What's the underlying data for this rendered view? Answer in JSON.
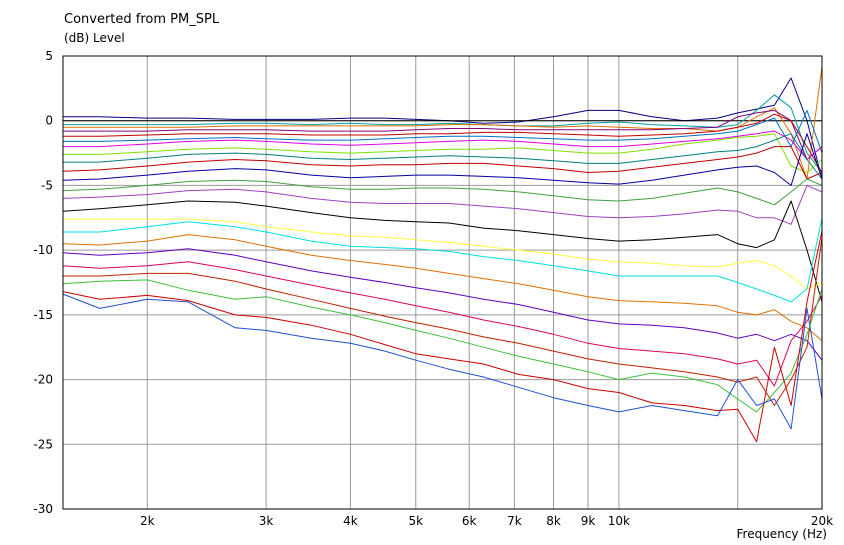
{
  "chart_data": {
    "type": "line",
    "title": "Converted from PM_SPL",
    "ylabel": "(dB)  Level",
    "xlabel": "Frequency  (Hz)",
    "x_scale": "log",
    "xlim": [
      1500,
      20000
    ],
    "ylim": [
      -30,
      5
    ],
    "grid": true,
    "y_ticks": [
      5,
      0,
      -5,
      -10,
      -15,
      -20,
      -25,
      -30
    ],
    "x_ticks": [
      {
        "value": 2000,
        "label": "2k"
      },
      {
        "value": 3000,
        "label": "3k"
      },
      {
        "value": 4000,
        "label": "4k"
      },
      {
        "value": 5000,
        "label": "5k"
      },
      {
        "value": 6000,
        "label": "6k"
      },
      {
        "value": 7000,
        "label": "7k"
      },
      {
        "value": 8000,
        "label": "8k"
      },
      {
        "value": 9000,
        "label": "9k"
      },
      {
        "value": 10000,
        "label": "10k"
      },
      {
        "value": 20000,
        "label": "20k"
      }
    ],
    "x_minor_ticks": [
      15000
    ],
    "x": [
      1500,
      1700,
      2000,
      2300,
      2700,
      3000,
      3500,
      4000,
      4500,
      5000,
      5600,
      6300,
      7100,
      8000,
      9000,
      10000,
      11200,
      12500,
      14000,
      15000,
      16000,
      17000,
      18000,
      19000,
      20000
    ],
    "series": [
      {
        "color": "#000080",
        "values": [
          0.3,
          0.3,
          0.2,
          0.2,
          0.1,
          0.1,
          0.1,
          0.2,
          0.2,
          0.1,
          0.0,
          -0.2,
          -0.1,
          0.3,
          0.8,
          0.8,
          0.3,
          0.0,
          0.2,
          0.6,
          0.9,
          1.2,
          3.3,
          0.0,
          -4.5
        ]
      },
      {
        "color": "#000000",
        "values": [
          0.0,
          0.0,
          0.0,
          0.0,
          0.0,
          0.0,
          0.0,
          0.0,
          0.0,
          0.0,
          0.0,
          0.0,
          0.0,
          0.0,
          0.0,
          0.0,
          0.0,
          0.0,
          0.0,
          0.0,
          0.0,
          0.0,
          0.0,
          0.0,
          0.0
        ]
      },
      {
        "color": "#00a0a0",
        "values": [
          -0.3,
          -0.3,
          -0.3,
          -0.3,
          -0.2,
          -0.2,
          -0.3,
          -0.2,
          -0.3,
          -0.3,
          -0.2,
          -0.3,
          -0.4,
          -0.4,
          -0.2,
          -0.1,
          -0.3,
          -0.4,
          -0.5,
          -0.3,
          0.8,
          2.0,
          1.0,
          -2.5,
          -4.0
        ]
      },
      {
        "color": "#e07000",
        "values": [
          -0.5,
          -0.5,
          -0.5,
          -0.5,
          -0.4,
          -0.4,
          -0.4,
          -0.4,
          -0.4,
          -0.4,
          -0.3,
          -0.3,
          -0.4,
          -0.5,
          -0.4,
          -0.5,
          -0.6,
          -0.6,
          -0.8,
          -0.5,
          0.3,
          1.0,
          -1.0,
          -4.5,
          4.2
        ]
      },
      {
        "color": "#800080",
        "values": [
          -0.8,
          -0.8,
          -0.8,
          -0.7,
          -0.7,
          -0.7,
          -0.8,
          -0.8,
          -0.8,
          -0.7,
          -0.6,
          -0.6,
          -0.7,
          -0.7,
          -0.7,
          -0.7,
          -0.7,
          -0.6,
          -0.5,
          0.3,
          0.6,
          0.8,
          0.0,
          -3.0,
          -2.0
        ]
      },
      {
        "color": "#c00000",
        "values": [
          -1.2,
          -1.2,
          -1.1,
          -1.0,
          -1.0,
          -1.0,
          -1.1,
          -1.1,
          -1.1,
          -1.0,
          -1.0,
          -0.9,
          -0.9,
          -1.0,
          -1.1,
          -1.2,
          -1.1,
          -1.0,
          -0.8,
          -0.5,
          -0.2,
          0.5,
          0.0,
          -2.0,
          -4.0
        ]
      },
      {
        "color": "#0070c0",
        "values": [
          -1.6,
          -1.6,
          -1.5,
          -1.4,
          -1.3,
          -1.4,
          -1.5,
          -1.5,
          -1.4,
          -1.3,
          -1.2,
          -1.2,
          -1.3,
          -1.4,
          -1.5,
          -1.5,
          -1.4,
          -1.2,
          -1.0,
          -0.8,
          -0.3,
          0.2,
          -2.0,
          0.8,
          -2.5
        ]
      },
      {
        "color": "#e000e0",
        "values": [
          -2.0,
          -2.0,
          -1.8,
          -1.6,
          -1.5,
          -1.6,
          -1.8,
          -1.9,
          -1.8,
          -1.7,
          -1.6,
          -1.5,
          -1.6,
          -1.8,
          -2.0,
          -2.0,
          -1.8,
          -1.6,
          -1.4,
          -1.2,
          -1.0,
          -0.8,
          -1.5,
          -3.0,
          -2.0
        ]
      },
      {
        "color": "#80e000",
        "values": [
          -2.6,
          -2.6,
          -2.4,
          -2.2,
          -2.1,
          -2.2,
          -2.4,
          -2.5,
          -2.4,
          -2.3,
          -2.2,
          -2.2,
          -2.1,
          -2.3,
          -2.5,
          -2.5,
          -2.2,
          -1.8,
          -1.5,
          -1.3,
          -1.2,
          -1.0,
          -3.5,
          -4.0,
          -3.0
        ]
      },
      {
        "color": "#008080",
        "values": [
          -3.2,
          -3.2,
          -2.9,
          -2.6,
          -2.5,
          -2.6,
          -2.9,
          -3.0,
          -2.9,
          -2.8,
          -2.7,
          -2.8,
          -2.9,
          -3.1,
          -3.3,
          -3.3,
          -3.0,
          -2.7,
          -2.4,
          -2.3,
          -2.0,
          -1.5,
          -1.0,
          -3.0,
          -4.5
        ]
      },
      {
        "color": "#c00000",
        "values": [
          -3.9,
          -3.8,
          -3.5,
          -3.2,
          -3.0,
          -3.1,
          -3.4,
          -3.5,
          -3.4,
          -3.4,
          -3.3,
          -3.3,
          -3.5,
          -3.7,
          -4.0,
          -3.9,
          -3.6,
          -3.3,
          -3.0,
          -2.8,
          -2.5,
          -2.0,
          -2.0,
          -4.5,
          -4.0
        ]
      },
      {
        "color": "#0000a0",
        "values": [
          -4.6,
          -4.5,
          -4.2,
          -3.9,
          -3.7,
          -3.8,
          -4.2,
          -4.4,
          -4.3,
          -4.2,
          -4.2,
          -4.3,
          -4.4,
          -4.6,
          -4.8,
          -4.9,
          -4.6,
          -4.2,
          -3.8,
          -3.6,
          -3.5,
          -4.0,
          -5.0,
          -1.0,
          -4.5
        ]
      },
      {
        "color": "#40a040",
        "values": [
          -5.4,
          -5.3,
          -5.0,
          -4.7,
          -4.6,
          -4.7,
          -5.1,
          -5.3,
          -5.3,
          -5.2,
          -5.2,
          -5.3,
          -5.5,
          -5.8,
          -6.1,
          -6.2,
          -6.0,
          -5.6,
          -5.2,
          -5.5,
          -6.0,
          -6.5,
          -5.5,
          -4.5,
          -5.0
        ]
      },
      {
        "color": "#a040c0",
        "values": [
          -6.0,
          -5.9,
          -5.7,
          -5.4,
          -5.3,
          -5.5,
          -6.0,
          -6.3,
          -6.4,
          -6.4,
          -6.4,
          -6.6,
          -6.8,
          -7.1,
          -7.4,
          -7.5,
          -7.4,
          -7.2,
          -6.9,
          -7.0,
          -7.5,
          -7.5,
          -8.0,
          -5.0,
          -5.5
        ]
      },
      {
        "color": "#000000",
        "values": [
          -7.0,
          -6.8,
          -6.5,
          -6.2,
          -6.3,
          -6.6,
          -7.1,
          -7.5,
          -7.7,
          -7.8,
          -7.9,
          -8.3,
          -8.5,
          -8.8,
          -9.1,
          -9.3,
          -9.2,
          -9.0,
          -8.8,
          -9.5,
          -9.8,
          -9.2,
          -6.2,
          -10.0,
          -14.0
        ]
      },
      {
        "color": "#ffff40",
        "values": [
          -7.6,
          -7.6,
          -7.6,
          -7.6,
          -7.8,
          -8.2,
          -8.6,
          -8.9,
          -9.0,
          -9.2,
          -9.4,
          -9.7,
          -10.0,
          -10.3,
          -10.7,
          -10.9,
          -11.0,
          -11.2,
          -11.3,
          -11.0,
          -10.8,
          -11.2,
          -12.0,
          -13.0,
          -12.5
        ]
      },
      {
        "color": "#00e0e0",
        "values": [
          -8.6,
          -8.6,
          -8.2,
          -7.8,
          -8.2,
          -8.6,
          -9.3,
          -9.7,
          -9.8,
          -9.9,
          -10.1,
          -10.5,
          -10.8,
          -11.2,
          -11.6,
          -12.0,
          -12.0,
          -12.0,
          -12.0,
          -12.5,
          -13.0,
          -13.5,
          -14.0,
          -13.0,
          -7.5
        ]
      },
      {
        "color": "#e07000",
        "values": [
          -9.5,
          -9.6,
          -9.3,
          -8.8,
          -9.2,
          -9.7,
          -10.4,
          -10.8,
          -11.1,
          -11.4,
          -11.8,
          -12.2,
          -12.6,
          -13.1,
          -13.6,
          -13.9,
          -14.0,
          -14.1,
          -14.3,
          -14.8,
          -15.0,
          -14.6,
          -15.5,
          -16.0,
          -17.0
        ]
      },
      {
        "color": "#6000c0",
        "values": [
          -10.2,
          -10.4,
          -10.2,
          -9.9,
          -10.4,
          -10.9,
          -11.6,
          -12.1,
          -12.5,
          -12.9,
          -13.3,
          -13.8,
          -14.2,
          -14.8,
          -15.4,
          -15.7,
          -15.8,
          -16.0,
          -16.4,
          -16.8,
          -16.5,
          -17.0,
          -16.5,
          -17.0,
          -18.5
        ]
      },
      {
        "color": "#e00060",
        "values": [
          -11.2,
          -11.4,
          -11.2,
          -10.9,
          -11.5,
          -12.0,
          -12.7,
          -13.3,
          -13.8,
          -14.3,
          -14.8,
          -15.4,
          -15.9,
          -16.5,
          -17.2,
          -17.6,
          -17.8,
          -18.0,
          -18.4,
          -18.8,
          -18.5,
          -20.5,
          -17.0,
          -15.5,
          -13.5
        ]
      },
      {
        "color": "#c02000",
        "values": [
          -12.0,
          -12.0,
          -11.8,
          -11.8,
          -12.4,
          -13.0,
          -13.8,
          -14.5,
          -15.1,
          -15.6,
          -16.1,
          -16.7,
          -17.2,
          -17.8,
          -18.4,
          -18.8,
          -19.1,
          -19.4,
          -19.8,
          -20.2,
          -19.8,
          -22.0,
          -20.0,
          -17.5,
          -9.0
        ]
      },
      {
        "color": "#40c040",
        "values": [
          -12.6,
          -12.4,
          -12.3,
          -13.1,
          -13.8,
          -13.6,
          -14.4,
          -15.0,
          -15.6,
          -16.2,
          -16.8,
          -17.5,
          -18.2,
          -18.8,
          -19.4,
          -20.0,
          -19.5,
          -19.8,
          -20.4,
          -21.5,
          -22.5,
          -21.0,
          -19.5,
          -16.5,
          -13.0
        ]
      },
      {
        "color": "#cc0000",
        "values": [
          -13.2,
          -13.8,
          -13.5,
          -13.9,
          -15.0,
          -15.2,
          -15.8,
          -16.5,
          -17.3,
          -18.0,
          -18.4,
          -18.8,
          -19.6,
          -20.0,
          -20.7,
          -21.0,
          -21.8,
          -22.0,
          -22.4,
          -22.3,
          -24.8,
          -17.5,
          -22.0,
          -14.0,
          -8.5
        ]
      },
      {
        "color": "#2050d0",
        "values": [
          -13.4,
          -14.5,
          -13.8,
          -14.0,
          -16.0,
          -16.2,
          -16.8,
          -17.2,
          -17.8,
          -18.5,
          -19.2,
          -19.8,
          -20.6,
          -21.4,
          -22.0,
          -22.5,
          -22.0,
          -22.4,
          -22.8,
          -20.0,
          -22.0,
          -21.5,
          -23.8,
          -14.5,
          -21.5
        ]
      }
    ]
  }
}
